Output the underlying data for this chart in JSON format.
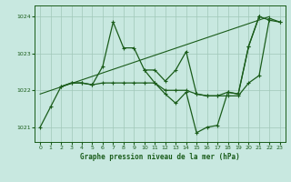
{
  "background_color": "#c8e8e0",
  "plot_bg_color": "#c8e8e0",
  "grid_color": "#a0c8b8",
  "line_color": "#1a5c1a",
  "title": "Graphe pression niveau de la mer (hPa)",
  "xlim": [
    -0.5,
    23.5
  ],
  "ylim": [
    1020.6,
    1024.3
  ],
  "yticks": [
    1021,
    1022,
    1023,
    1024
  ],
  "xticks": [
    0,
    1,
    2,
    3,
    4,
    5,
    6,
    7,
    8,
    9,
    10,
    11,
    12,
    13,
    14,
    15,
    16,
    17,
    18,
    19,
    20,
    21,
    22,
    23
  ],
  "series": [
    {
      "x": [
        0,
        1,
        2,
        3,
        4,
        5,
        6,
        7,
        8,
        9,
        10,
        11,
        12,
        13,
        14,
        15,
        16,
        17,
        18,
        19,
        20,
        21
      ],
      "y": [
        1021.0,
        1021.55,
        1022.1,
        1022.2,
        1022.2,
        1022.15,
        1022.65,
        1023.85,
        1023.15,
        1023.15,
        1022.55,
        1022.55,
        1022.25,
        1022.55,
        1023.05,
        1021.9,
        1021.85,
        1021.85,
        1021.95,
        1021.9,
        1023.2,
        1024.0
      ]
    },
    {
      "x": [
        2,
        3,
        4,
        5,
        6,
        7,
        8,
        9,
        10,
        11,
        12,
        13,
        14,
        15,
        16,
        17,
        18,
        19,
        20,
        21,
        22,
        23
      ],
      "y": [
        1022.1,
        1022.2,
        1022.2,
        1022.15,
        1022.2,
        1022.2,
        1022.2,
        1022.2,
        1022.2,
        1022.2,
        1022.0,
        1022.0,
        1022.0,
        1021.9,
        1021.85,
        1021.85,
        1021.85,
        1021.85,
        1022.2,
        1022.4,
        1023.95,
        1023.85
      ]
    },
    {
      "x": [
        0,
        22
      ],
      "y": [
        1021.9,
        1024.0
      ]
    },
    {
      "x": [
        10,
        11,
        12,
        13,
        14,
        15,
        16,
        17,
        18,
        19,
        20,
        21
      ],
      "y": [
        1022.55,
        1022.2,
        1021.9,
        1021.65,
        1021.95,
        1020.85,
        1021.0,
        1021.05,
        1021.95,
        1021.9,
        1023.2,
        1024.0
      ]
    },
    {
      "x": [
        21,
        22,
        23
      ],
      "y": [
        1024.0,
        1023.9,
        1023.85
      ]
    }
  ]
}
